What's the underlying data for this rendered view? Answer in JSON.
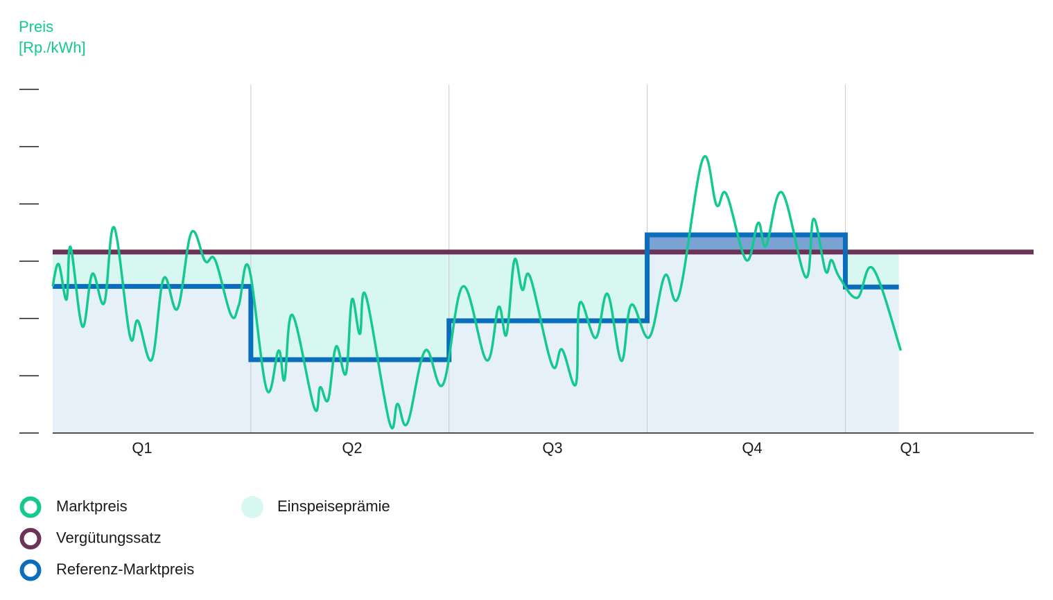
{
  "chart_data": {
    "type": "line",
    "ylabel": [
      "Preis",
      "[Rp./kWh]"
    ],
    "categories": [
      "Q1",
      "Q2",
      "Q3",
      "Q4",
      "Q1"
    ],
    "xlim": [
      0,
      4.95
    ],
    "xticks": [
      1,
      2,
      3,
      4
    ],
    "ylim": [
      0,
      6
    ],
    "yticks": [
      0,
      1,
      2,
      3,
      4,
      5,
      6
    ],
    "grid": true,
    "series": [
      {
        "name": "Marktpreis",
        "color": "#14c98f",
        "style": "smooth",
        "x": [
          0,
          0.03,
          0.07,
          0.09,
          0.15,
          0.2,
          0.26,
          0.31,
          0.39,
          0.43,
          0.5,
          0.56,
          0.63,
          0.7,
          0.77,
          0.82,
          0.9,
          0.94,
          0.99,
          1.08,
          1.14,
          1.17,
          1.21,
          1.32,
          1.35,
          1.39,
          1.43,
          1.48,
          1.51,
          1.55,
          1.58,
          1.7,
          1.74,
          1.79,
          1.88,
          1.97,
          2.07,
          2.19,
          2.25,
          2.29,
          2.33,
          2.37,
          2.41,
          2.52,
          2.57,
          2.64,
          2.66,
          2.74,
          2.8,
          2.87,
          2.92,
          3.01,
          3.09,
          3.16,
          3.28,
          3.35,
          3.4,
          3.5,
          3.56,
          3.6,
          3.68,
          3.8,
          3.84,
          3.9,
          3.93,
          3.97,
          4.06,
          4.14,
          4.28
        ],
        "values": [
          2.56,
          2.95,
          2.33,
          3.25,
          1.86,
          2.78,
          2.27,
          3.59,
          1.69,
          1.96,
          1.28,
          2.7,
          2.17,
          3.5,
          3.0,
          3.02,
          2.06,
          2.24,
          2.89,
          0.76,
          1.44,
          0.93,
          2.06,
          0.44,
          0.8,
          0.58,
          1.51,
          1.04,
          2.33,
          1.73,
          2.4,
          0.18,
          0.51,
          0.17,
          1.44,
          0.85,
          2.56,
          1.27,
          2.2,
          1.72,
          3.02,
          2.5,
          2.72,
          1.19,
          1.46,
          0.85,
          2.27,
          1.66,
          2.43,
          1.26,
          2.24,
          1.67,
          2.75,
          2.4,
          4.78,
          3.98,
          4.17,
          3.02,
          3.67,
          3.27,
          4.2,
          2.72,
          3.74,
          2.83,
          3.02,
          2.72,
          2.36,
          2.87,
          1.44
        ]
      },
      {
        "name": "Vergütungssatz",
        "color": "#6b3358",
        "style": "step",
        "x": [
          0,
          4.95
        ],
        "values": [
          3.16,
          3.16
        ]
      },
      {
        "name": "Referenz-Marktpreis",
        "color": "#0a6ebd",
        "style": "step",
        "x": [
          0,
          1,
          2,
          3,
          4,
          4.27
        ],
        "values": [
          2.56,
          1.28,
          1.96,
          3.46,
          2.55,
          2.55
        ]
      }
    ],
    "areas": [
      {
        "name": "Einspeiseprämie",
        "color": "#d9f7f1"
      }
    ]
  }
}
